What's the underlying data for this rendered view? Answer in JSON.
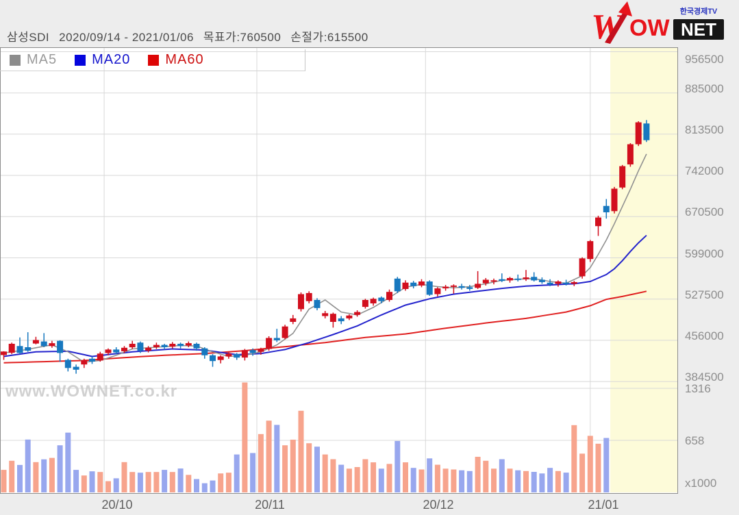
{
  "header": {
    "stock_name": "삼성SDI",
    "period": "2020/09/14 - 2021/01/06",
    "target_price": "목표가:760500",
    "stop_loss": "손절가:615500"
  },
  "logo": {
    "wow": "WOW",
    "net": "NET",
    "broadcaster": "한국경제TV"
  },
  "legend": [
    {
      "label": "MA5",
      "color": "#9a9a9a",
      "square": "#8c8c8c"
    },
    {
      "label": "MA20",
      "color": "#1414cc",
      "square": "#0505dd"
    },
    {
      "label": "MA60",
      "color": "#cc1111",
      "square": "#dd0505"
    }
  ],
  "watermark": "www.WOWNET.co.kr",
  "y_axis": {
    "price_labels": [
      956500,
      885000,
      813500,
      742000,
      670500,
      599000,
      527500,
      456000,
      384500
    ],
    "volume_labels": [
      1316,
      658
    ],
    "unit": "x1000"
  },
  "x_axis": {
    "month_labels": [
      "20/10",
      "20/11",
      "20/12",
      "21/01"
    ]
  },
  "chart_data": {
    "type": "candlestick",
    "title": "삼성SDI 2020/09/14 - 2021/01/06",
    "price_axis": {
      "top_value": 956500,
      "step_value": 71500,
      "bottom_value": 384500
    },
    "volume_axis": {
      "gridlines": [
        658,
        1316
      ],
      "unit": "x1000"
    },
    "month_tick_indices": [
      12.5,
      31.5,
      52.5,
      73.0
    ],
    "highlight_start_index": 75.5,
    "colors": {
      "up": "#d20f1e",
      "down": "#1778bf",
      "vol_up": "#f7a48d",
      "vol_down": "#98a7ee",
      "ma5": "#909090",
      "ma20": "#2222cc",
      "ma60": "#e02020",
      "highlight": "#fdfbd9",
      "grid": "#d8d8d8",
      "border": "#8c8c8c"
    },
    "candles": [
      [
        430500,
        437000,
        422000,
        436500,
        "r",
        285
      ],
      [
        434500,
        452000,
        432000,
        450000,
        "r",
        400
      ],
      [
        446000,
        461000,
        432000,
        434000,
        "b",
        347
      ],
      [
        444000,
        470000,
        436000,
        438000,
        "b",
        668
      ],
      [
        450500,
        462000,
        449000,
        456500,
        "r",
        383
      ],
      [
        454000,
        468500,
        444000,
        446000,
        "b",
        418
      ],
      [
        446000,
        455000,
        443000,
        451000,
        "r",
        436
      ],
      [
        455000,
        456000,
        418500,
        434000,
        "b",
        596
      ],
      [
        422000,
        424000,
        402000,
        408000,
        "b",
        756
      ],
      [
        410000,
        414000,
        398000,
        405000,
        "b",
        285
      ],
      [
        414000,
        424000,
        408000,
        421500,
        "r",
        214
      ],
      [
        424000,
        428000,
        415000,
        419000,
        "b",
        267
      ],
      [
        421000,
        436000,
        419000,
        433000,
        "r",
        258
      ],
      [
        434000,
        442000,
        430000,
        440000,
        "r",
        142
      ],
      [
        440000,
        444000,
        432000,
        435000,
        "b",
        178
      ],
      [
        437000,
        446000,
        434000,
        443000,
        "r",
        383
      ],
      [
        444000,
        455000,
        441000,
        450000,
        "r",
        258
      ],
      [
        452000,
        454000,
        434000,
        438000,
        "b",
        249
      ],
      [
        438000,
        446000,
        435000,
        443000,
        "r",
        258
      ],
      [
        444000,
        452000,
        441000,
        448000,
        "r",
        258
      ],
      [
        448000,
        450000,
        440000,
        444000,
        "b",
        285
      ],
      [
        445000,
        453000,
        442000,
        450000,
        "r",
        258
      ],
      [
        450000,
        452000,
        442000,
        446000,
        "b",
        302
      ],
      [
        447000,
        454000,
        444000,
        451000,
        "r",
        222
      ],
      [
        450000,
        452000,
        438000,
        442000,
        "b",
        169
      ],
      [
        442000,
        444000,
        424000,
        430000,
        "b",
        116
      ],
      [
        430000,
        432000,
        410000,
        420000,
        "b",
        151
      ],
      [
        422000,
        430000,
        416000,
        428000,
        "r",
        240
      ],
      [
        428000,
        435000,
        424000,
        433000,
        "r",
        249
      ],
      [
        432000,
        434000,
        422000,
        426000,
        "b",
        480
      ],
      [
        426000,
        441000,
        421000,
        439000,
        "r",
        1390
      ],
      [
        439000,
        442000,
        429000,
        434000,
        "b",
        498
      ],
      [
        436000,
        443000,
        431000,
        441000,
        "r",
        738
      ],
      [
        441000,
        463000,
        438000,
        460000,
        "r",
        907
      ],
      [
        460000,
        476000,
        453000,
        456000,
        "b",
        854
      ],
      [
        460000,
        483000,
        458000,
        480000,
        "r",
        596
      ],
      [
        488000,
        500000,
        484000,
        494000,
        "r",
        667
      ],
      [
        510000,
        539000,
        506000,
        536000,
        "r",
        1032
      ],
      [
        524000,
        541000,
        520000,
        538000,
        "r",
        622
      ],
      [
        526000,
        529000,
        508000,
        512000,
        "b",
        578
      ],
      [
        498000,
        507000,
        494000,
        503000,
        "r",
        480
      ],
      [
        488000,
        504000,
        478000,
        502000,
        "r",
        420
      ],
      [
        494000,
        498000,
        484000,
        489000,
        "b",
        350
      ],
      [
        494000,
        501000,
        491000,
        499000,
        "r",
        300
      ],
      [
        500000,
        508000,
        497000,
        505000,
        "r",
        320
      ],
      [
        514000,
        528000,
        511000,
        526000,
        "r",
        420
      ],
      [
        520000,
        530000,
        516000,
        528000,
        "r",
        380
      ],
      [
        530000,
        532000,
        520000,
        524000,
        "b",
        300
      ],
      [
        526000,
        544000,
        523000,
        540000,
        "r",
        360
      ],
      [
        563000,
        566000,
        538000,
        541000,
        "b",
        650
      ],
      [
        545000,
        560000,
        542000,
        556000,
        "r",
        380
      ],
      [
        556000,
        559000,
        546000,
        550000,
        "b",
        310
      ],
      [
        551000,
        562000,
        548000,
        558000,
        "r",
        290
      ],
      [
        558000,
        560000,
        533000,
        535000,
        "b",
        430
      ],
      [
        536000,
        548000,
        532000,
        546000,
        "r",
        350
      ],
      [
        546000,
        552000,
        542000,
        549000,
        "r",
        300
      ],
      [
        549000,
        553000,
        537000,
        551000,
        "r",
        290
      ],
      [
        550000,
        554000,
        544000,
        547000,
        "b",
        280
      ],
      [
        548000,
        552000,
        542000,
        545000,
        "b",
        270
      ],
      [
        547000,
        576000,
        545000,
        554000,
        "r",
        450
      ],
      [
        555000,
        564000,
        551000,
        561000,
        "r",
        400
      ],
      [
        558000,
        563000,
        553000,
        560000,
        "r",
        300
      ],
      [
        562000,
        572000,
        557000,
        559000,
        "b",
        420
      ],
      [
        560000,
        566000,
        556000,
        564000,
        "r",
        300
      ],
      [
        563000,
        570000,
        558000,
        561000,
        "b",
        280
      ],
      [
        562000,
        578000,
        559000,
        565000,
        "r",
        270
      ],
      [
        566000,
        574000,
        558000,
        560000,
        "b",
        260
      ],
      [
        561000,
        565000,
        554000,
        557000,
        "b",
        240
      ],
      [
        556000,
        562000,
        550000,
        553000,
        "b",
        310
      ],
      [
        554000,
        560000,
        549000,
        558000,
        "r",
        270
      ],
      [
        556000,
        561000,
        551000,
        554000,
        "b",
        250
      ],
      [
        554000,
        559000,
        550000,
        557000,
        "r",
        850
      ],
      [
        567000,
        600000,
        563000,
        598000,
        "r",
        490
      ],
      [
        597000,
        630000,
        592000,
        628000,
        "r",
        715
      ],
      [
        654000,
        672000,
        637000,
        669000,
        "r",
        616
      ],
      [
        689000,
        701000,
        667000,
        678000,
        "b",
        688
      ],
      [
        680000,
        722000,
        676000,
        719000,
        "r",
        null
      ],
      [
        721000,
        760000,
        718000,
        758000,
        "r",
        null
      ],
      [
        761000,
        798000,
        757000,
        796000,
        "r",
        null
      ],
      [
        796000,
        836000,
        793000,
        834000,
        "r",
        null
      ],
      [
        832000,
        838000,
        800000,
        803000,
        "b",
        null
      ]
    ],
    "ma5": [
      [
        0,
        434000
      ],
      [
        2,
        438000
      ],
      [
        4,
        443000
      ],
      [
        6,
        448000
      ],
      [
        8,
        436000
      ],
      [
        10,
        418000
      ],
      [
        12,
        421000
      ],
      [
        14,
        430000
      ],
      [
        16,
        441000
      ],
      [
        18,
        443000
      ],
      [
        20,
        445000
      ],
      [
        22,
        447000
      ],
      [
        24,
        446000
      ],
      [
        26,
        436000
      ],
      [
        28,
        428000
      ],
      [
        30,
        430000
      ],
      [
        32,
        436000
      ],
      [
        34,
        448000
      ],
      [
        36,
        468000
      ],
      [
        38,
        510000
      ],
      [
        40,
        526000
      ],
      [
        42,
        505000
      ],
      [
        44,
        500000
      ],
      [
        46,
        513000
      ],
      [
        48,
        530000
      ],
      [
        50,
        548000
      ],
      [
        52,
        553000
      ],
      [
        54,
        549000
      ],
      [
        56,
        547000
      ],
      [
        58,
        549000
      ],
      [
        60,
        554000
      ],
      [
        62,
        560000
      ],
      [
        64,
        562000
      ],
      [
        66,
        563000
      ],
      [
        68,
        558000
      ],
      [
        70,
        555000
      ],
      [
        72,
        568000
      ],
      [
        73,
        582000
      ],
      [
        74,
        605000
      ],
      [
        75,
        630000
      ],
      [
        76,
        658000
      ],
      [
        77,
        688000
      ],
      [
        78,
        718000
      ],
      [
        79,
        750000
      ],
      [
        80,
        779000
      ]
    ],
    "ma20": [
      [
        0,
        428000
      ],
      [
        4,
        436000
      ],
      [
        8,
        437000
      ],
      [
        11,
        428000
      ],
      [
        16,
        436000
      ],
      [
        21,
        441000
      ],
      [
        25,
        439000
      ],
      [
        29,
        431000
      ],
      [
        32,
        433000
      ],
      [
        35,
        440000
      ],
      [
        38,
        452000
      ],
      [
        41,
        466000
      ],
      [
        44,
        481000
      ],
      [
        47,
        500000
      ],
      [
        50,
        517000
      ],
      [
        53,
        528000
      ],
      [
        56,
        536000
      ],
      [
        59,
        541000
      ],
      [
        62,
        546000
      ],
      [
        65,
        550000
      ],
      [
        68,
        552000
      ],
      [
        71,
        554000
      ],
      [
        73,
        558000
      ],
      [
        75,
        570000
      ],
      [
        76,
        580000
      ],
      [
        77,
        594000
      ],
      [
        78,
        610000
      ],
      [
        79,
        625000
      ],
      [
        80,
        638000
      ]
    ],
    "ma60": [
      [
        0,
        417000
      ],
      [
        5,
        419000
      ],
      [
        10,
        421000
      ],
      [
        15,
        426000
      ],
      [
        20,
        430000
      ],
      [
        25,
        433000
      ],
      [
        30,
        438000
      ],
      [
        35,
        445000
      ],
      [
        40,
        452000
      ],
      [
        45,
        461000
      ],
      [
        50,
        467000
      ],
      [
        55,
        477000
      ],
      [
        60,
        486000
      ],
      [
        65,
        494000
      ],
      [
        70,
        505000
      ],
      [
        73,
        516000
      ],
      [
        75,
        527000
      ],
      [
        77,
        532000
      ],
      [
        79,
        538000
      ],
      [
        80,
        541000
      ]
    ]
  }
}
